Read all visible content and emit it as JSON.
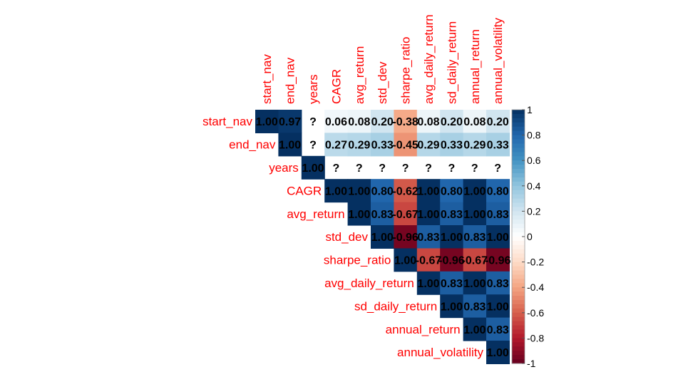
{
  "chart_data": {
    "type": "heatmap",
    "layout": "upper-triangle",
    "variables": [
      "start_nav",
      "end_nav",
      "years",
      "CAGR",
      "avg_return",
      "std_dev",
      "sharpe_ratio",
      "avg_daily_return",
      "sd_daily_return",
      "annual_return",
      "annual_volatility"
    ],
    "matrix": [
      [
        1.0,
        0.97,
        null,
        0.06,
        0.08,
        0.2,
        -0.38,
        0.08,
        0.2,
        0.08,
        0.2
      ],
      [
        null,
        1.0,
        null,
        0.27,
        0.29,
        0.33,
        -0.45,
        0.29,
        0.33,
        0.29,
        0.33
      ],
      [
        null,
        null,
        1.0,
        null,
        null,
        null,
        null,
        null,
        null,
        null,
        null
      ],
      [
        null,
        null,
        null,
        1.0,
        1.0,
        0.8,
        -0.62,
        1.0,
        0.8,
        1.0,
        0.8
      ],
      [
        null,
        null,
        null,
        null,
        1.0,
        0.83,
        -0.67,
        1.0,
        0.83,
        1.0,
        0.83
      ],
      [
        null,
        null,
        null,
        null,
        null,
        1.0,
        -0.96,
        0.83,
        1.0,
        0.83,
        1.0
      ],
      [
        null,
        null,
        null,
        null,
        null,
        null,
        1.0,
        -0.67,
        -0.96,
        -0.67,
        -0.96
      ],
      [
        null,
        null,
        null,
        null,
        null,
        null,
        null,
        1.0,
        0.83,
        1.0,
        0.83
      ],
      [
        null,
        null,
        null,
        null,
        null,
        null,
        null,
        null,
        1.0,
        0.83,
        1.0
      ],
      [
        null,
        null,
        null,
        null,
        null,
        null,
        null,
        null,
        null,
        1.0,
        0.83
      ],
      [
        null,
        null,
        null,
        null,
        null,
        null,
        null,
        null,
        null,
        null,
        1.0
      ]
    ],
    "missing_rows": [
      [
        0,
        2
      ],
      [
        1,
        2
      ],
      [
        2,
        3
      ],
      [
        2,
        4
      ],
      [
        2,
        5
      ],
      [
        2,
        6
      ],
      [
        2,
        7
      ],
      [
        2,
        8
      ],
      [
        2,
        9
      ],
      [
        2,
        10
      ]
    ],
    "missing_label": "?",
    "colorbar": {
      "range": [
        -1,
        1
      ],
      "ticks": [
        1,
        0.8,
        0.6,
        0.4,
        0.2,
        0,
        -0.2,
        -0.4,
        -0.6,
        -0.8,
        -1
      ],
      "tick_labels": [
        "1",
        "0.8",
        "0.6",
        "0.4",
        "0.2",
        "0",
        "-0.2",
        "-0.4",
        "-0.6",
        "-0.8",
        "-1"
      ],
      "colors": [
        "#67001F",
        "#B2182B",
        "#D6604D",
        "#F4A582",
        "#FDDBC7",
        "#FFFFFF",
        "#D1E5F0",
        "#92C5DE",
        "#4393C3",
        "#2166AC",
        "#053061"
      ]
    },
    "label_color": "#FF0000",
    "title": "",
    "xlabel": "",
    "ylabel": ""
  }
}
